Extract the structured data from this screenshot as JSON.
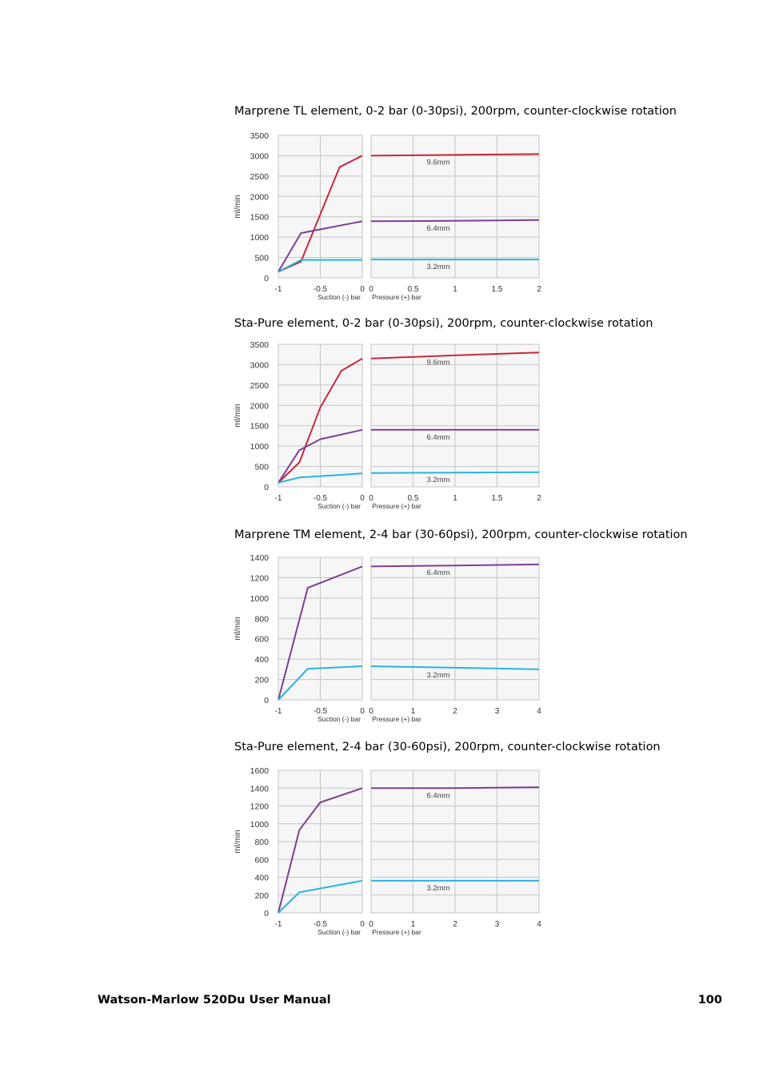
{
  "footer": {
    "manual_title": "Watson-Marlow 520Du User Manual",
    "page_number": "100"
  },
  "colors": {
    "mm96": "#c8283c",
    "mm64": "#7e3f93",
    "mm32": "#29b4e0",
    "grid": "#c4c4c4",
    "frame": "#b8b8b8",
    "panel_background": "#f6f6f6"
  },
  "chart_data": [
    {
      "type": "line",
      "title": "Marprene TL element, 0-2 bar (0-30psi), 200rpm, counter-clockwise rotation",
      "ylabel": "ml/min",
      "ylim": [
        0,
        3500
      ],
      "yticks": [
        0,
        500,
        1000,
        1500,
        2000,
        2500,
        3000,
        3500
      ],
      "left_panel": {
        "xlabel": "Suction (-) bar",
        "xlim": [
          -1,
          0
        ],
        "xticks": [
          -1,
          -0.5,
          0
        ],
        "xtick_labels": [
          "-1",
          "-0.5",
          "0"
        ]
      },
      "right_panel": {
        "xlabel": "Pressure (+) bar",
        "xlim": [
          0,
          2
        ],
        "xticks": [
          0,
          0.5,
          1,
          1.5,
          2
        ],
        "xtick_labels": [
          "0",
          "0.5",
          "1",
          "1.5",
          "2"
        ]
      },
      "series": [
        {
          "name": "9.6mm",
          "color_key": "mm96",
          "left": [
            [
              -1,
              150
            ],
            [
              -0.73,
              400
            ],
            [
              -0.27,
              2720
            ],
            [
              0,
              3000
            ]
          ],
          "right": [
            [
              0,
              3000
            ],
            [
              1,
              3020
            ],
            [
              2,
              3040
            ]
          ]
        },
        {
          "name": "6.4mm",
          "color_key": "mm64",
          "left": [
            [
              -1,
              150
            ],
            [
              -0.73,
              1100
            ],
            [
              0,
              1390
            ]
          ],
          "right": [
            [
              0,
              1390
            ],
            [
              1,
              1400
            ],
            [
              2,
              1420
            ]
          ]
        },
        {
          "name": "3.2mm",
          "color_key": "mm32",
          "left": [
            [
              -1,
              150
            ],
            [
              -0.73,
              440
            ],
            [
              0,
              440
            ]
          ],
          "right": [
            [
              0,
              450
            ],
            [
              1,
              450
            ],
            [
              2,
              450
            ]
          ]
        }
      ]
    },
    {
      "type": "line",
      "title": "Sta-Pure element, 0-2 bar (0-30psi), 200rpm, counter-clockwise rotation",
      "ylabel": "ml/min",
      "ylim": [
        0,
        3500
      ],
      "yticks": [
        0,
        500,
        1000,
        1500,
        2000,
        2500,
        3000,
        3500
      ],
      "left_panel": {
        "xlabel": "Suction (-) bar",
        "xlim": [
          -1,
          0
        ],
        "xticks": [
          -1,
          -0.5,
          0
        ],
        "xtick_labels": [
          "-1",
          "-0.5",
          "0"
        ]
      },
      "right_panel": {
        "xlabel": "Pressure (+) bar",
        "xlim": [
          0,
          2
        ],
        "xticks": [
          0,
          0.5,
          1,
          1.5,
          2
        ],
        "xtick_labels": [
          "0",
          "0.5",
          "1",
          "1.5",
          "2"
        ]
      },
      "series": [
        {
          "name": "9.6mm",
          "color_key": "mm96",
          "left": [
            [
              -1,
              100
            ],
            [
              -0.75,
              600
            ],
            [
              -0.5,
              1950
            ],
            [
              -0.25,
              2850
            ],
            [
              0,
              3150
            ]
          ],
          "right": [
            [
              0,
              3150
            ],
            [
              1,
              3230
            ],
            [
              2,
              3300
            ]
          ]
        },
        {
          "name": "6.4mm",
          "color_key": "mm64",
          "left": [
            [
              -1,
              100
            ],
            [
              -0.75,
              900
            ],
            [
              -0.5,
              1170
            ],
            [
              0,
              1400
            ]
          ],
          "right": [
            [
              0,
              1400
            ],
            [
              1,
              1400
            ],
            [
              2,
              1400
            ]
          ]
        },
        {
          "name": "3.2mm",
          "color_key": "mm32",
          "left": [
            [
              -1,
              100
            ],
            [
              -0.75,
              230
            ],
            [
              0,
              330
            ]
          ],
          "right": [
            [
              0,
              340
            ],
            [
              1,
              350
            ],
            [
              2,
              360
            ]
          ]
        }
      ]
    },
    {
      "type": "line",
      "title": "Marprene TM element, 2-4 bar (30-60psi), 200rpm, counter-clockwise rotation",
      "ylabel": "ml/min",
      "ylim": [
        0,
        1400
      ],
      "yticks": [
        0,
        200,
        400,
        600,
        800,
        1000,
        1200,
        1400
      ],
      "left_panel": {
        "xlabel": "Suction (-) bar",
        "xlim": [
          -1,
          0
        ],
        "xticks": [
          -1,
          -0.5,
          0
        ],
        "xtick_labels": [
          "-1",
          "-0.5",
          "0"
        ]
      },
      "right_panel": {
        "xlabel": "Pressure (+) bar",
        "xlim": [
          0,
          4
        ],
        "xticks": [
          0,
          1,
          2,
          3,
          4
        ],
        "xtick_labels": [
          "0",
          "1",
          "2",
          "3",
          "4"
        ]
      },
      "series": [
        {
          "name": "6.4mm",
          "color_key": "mm64",
          "left": [
            [
              -1,
              0
            ],
            [
              -0.65,
              1100
            ],
            [
              0,
              1310
            ]
          ],
          "right": [
            [
              0,
              1310
            ],
            [
              2,
              1320
            ],
            [
              4,
              1330
            ]
          ]
        },
        {
          "name": "3.2mm",
          "color_key": "mm32",
          "left": [
            [
              -1,
              0
            ],
            [
              -0.65,
              305
            ],
            [
              0,
              330
            ]
          ],
          "right": [
            [
              0,
              330
            ],
            [
              2,
              315
            ],
            [
              4,
              300
            ]
          ]
        }
      ]
    },
    {
      "type": "line",
      "title": "Sta-Pure element, 2-4 bar (30-60psi), 200rpm, counter-clockwise rotation",
      "ylabel": "ml/min",
      "ylim": [
        0,
        1600
      ],
      "yticks": [
        0,
        200,
        400,
        600,
        800,
        1000,
        1200,
        1400,
        1600
      ],
      "left_panel": {
        "xlabel": "Suction (-) bar",
        "xlim": [
          -1,
          0
        ],
        "xticks": [
          -1,
          -0.5,
          0
        ],
        "xtick_labels": [
          "-1",
          "-0.5",
          "0"
        ]
      },
      "right_panel": {
        "xlabel": "Pressure (+) bar",
        "xlim": [
          0,
          4
        ],
        "xticks": [
          0,
          1,
          2,
          3,
          4
        ],
        "xtick_labels": [
          "0",
          "1",
          "2",
          "3",
          "4"
        ]
      },
      "series": [
        {
          "name": "6.4mm",
          "color_key": "mm64",
          "left": [
            [
              -1,
              0
            ],
            [
              -0.75,
              930
            ],
            [
              -0.5,
              1240
            ],
            [
              0,
              1400
            ]
          ],
          "right": [
            [
              0,
              1400
            ],
            [
              2,
              1400
            ],
            [
              4,
              1410
            ]
          ]
        },
        {
          "name": "3.2mm",
          "color_key": "mm32",
          "left": [
            [
              -1,
              0
            ],
            [
              -0.75,
              230
            ],
            [
              0,
              360
            ]
          ],
          "right": [
            [
              0,
              360
            ],
            [
              2,
              360
            ],
            [
              4,
              360
            ]
          ]
        }
      ]
    }
  ]
}
